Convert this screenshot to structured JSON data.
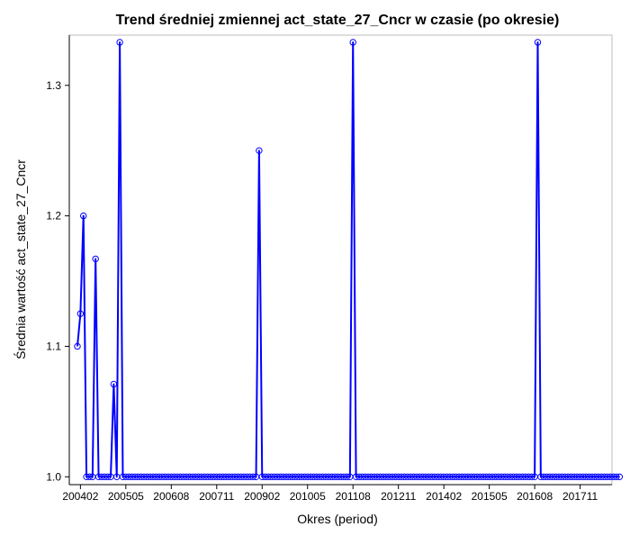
{
  "colors": {
    "series": "#0000ff",
    "axis": "#000000",
    "frame": "#bdbdbd",
    "background": "#ffffff"
  },
  "chart_data": {
    "type": "line",
    "title": "Trend średniej zmiennej act_state_27_Cncr w czasie (po okresie)",
    "xlabel": "Okres (period)",
    "ylabel": "Średnia wartość act_state_27_Cncr",
    "x_tick_labels": [
      "200402",
      "200505",
      "200608",
      "200711",
      "200902",
      "201005",
      "201108",
      "201211",
      "201402",
      "201505",
      "201608",
      "201711"
    ],
    "y_ticks": [
      1.0,
      1.1,
      1.2,
      1.3
    ],
    "y_tick_labels": [
      "1.0",
      "1.1",
      "1.2",
      "1.3"
    ],
    "ylim": [
      0.994,
      1.3385
    ],
    "grid": false,
    "legend": "none",
    "series": [
      {
        "period_start": "200401",
        "values": [
          1.1,
          1.125,
          1.2,
          1.0,
          1.0,
          1.0,
          1.167,
          1.0,
          1.0,
          1.0,
          1.0,
          1.0,
          1.071,
          1.0,
          1.333,
          1.0,
          1.0,
          1.0,
          1.0,
          1.0,
          1.0,
          1.0,
          1.0,
          1.0,
          1.0,
          1.0,
          1.0,
          1.0,
          1.0,
          1.0,
          1.0,
          1.0,
          1.0,
          1.0,
          1.0,
          1.0,
          1.0,
          1.0,
          1.0,
          1.0,
          1.0,
          1.0,
          1.0,
          1.0,
          1.0,
          1.0,
          1.0,
          1.0,
          1.0,
          1.0,
          1.0,
          1.0,
          1.0,
          1.0,
          1.0,
          1.0,
          1.0,
          1.0,
          1.0,
          1.0,
          1.25,
          1.0,
          1.0,
          1.0,
          1.0,
          1.0,
          1.0,
          1.0,
          1.0,
          1.0,
          1.0,
          1.0,
          1.0,
          1.0,
          1.0,
          1.0,
          1.0,
          1.0,
          1.0,
          1.0,
          1.0,
          1.0,
          1.0,
          1.0,
          1.0,
          1.0,
          1.0,
          1.0,
          1.0,
          1.0,
          1.0,
          1.333,
          1.0,
          1.0,
          1.0,
          1.0,
          1.0,
          1.0,
          1.0,
          1.0,
          1.0,
          1.0,
          1.0,
          1.0,
          1.0,
          1.0,
          1.0,
          1.0,
          1.0,
          1.0,
          1.0,
          1.0,
          1.0,
          1.0,
          1.0,
          1.0,
          1.0,
          1.0,
          1.0,
          1.0,
          1.0,
          1.0,
          1.0,
          1.0,
          1.0,
          1.0,
          1.0,
          1.0,
          1.0,
          1.0,
          1.0,
          1.0,
          1.0,
          1.0,
          1.0,
          1.0,
          1.0,
          1.0,
          1.0,
          1.0,
          1.0,
          1.0,
          1.0,
          1.0,
          1.0,
          1.0,
          1.0,
          1.0,
          1.0,
          1.0,
          1.0,
          1.0,
          1.333,
          1.0,
          1.0,
          1.0,
          1.0,
          1.0,
          1.0,
          1.0,
          1.0,
          1.0,
          1.0,
          1.0,
          1.0,
          1.0,
          1.0,
          1.0,
          1.0,
          1.0,
          1.0,
          1.0,
          1.0,
          1.0,
          1.0,
          1.0,
          1.0,
          1.0,
          1.0,
          1.0
        ]
      }
    ]
  }
}
